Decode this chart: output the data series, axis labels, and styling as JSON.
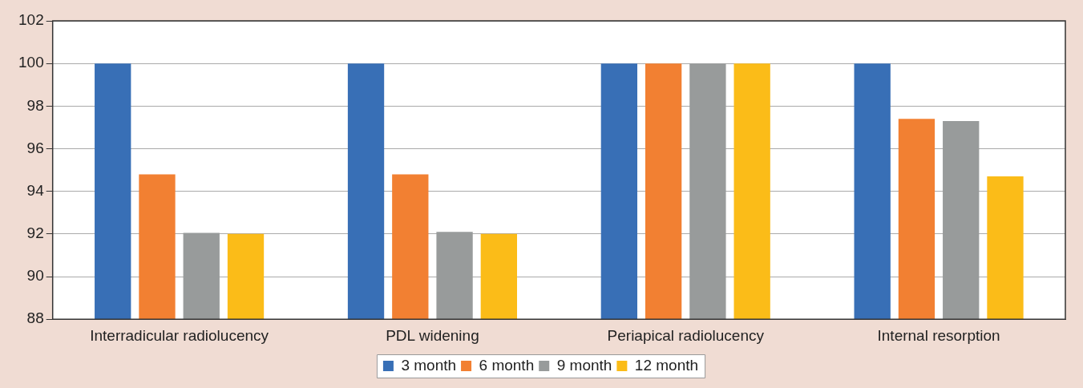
{
  "chart_data": {
    "type": "bar",
    "categories": [
      "Interradicular radiolucency",
      "PDL widening",
      "Periapical radiolucency",
      "Internal resorption"
    ],
    "series": [
      {
        "name": "3 month",
        "color": "#386fb6",
        "values": [
          100,
          100,
          100,
          100
        ]
      },
      {
        "name": "6 month",
        "color": "#f28032",
        "values": [
          94.8,
          94.8,
          100,
          97.4
        ]
      },
      {
        "name": "9 month",
        "color": "#989b9b",
        "values": [
          92.05,
          92.1,
          100,
          97.3
        ]
      },
      {
        "name": "12 month",
        "color": "#fbbc18",
        "values": [
          92,
          92,
          100,
          94.7
        ]
      }
    ],
    "ylim": [
      88,
      102
    ],
    "yticks": [
      88,
      90,
      92,
      94,
      96,
      98,
      100,
      102
    ],
    "grid": "y",
    "legend": "bottom"
  }
}
